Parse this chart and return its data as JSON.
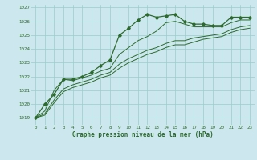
{
  "title": "Graphe pression niveau de la mer (hPa)",
  "xlabel_hours": [
    0,
    1,
    2,
    3,
    4,
    5,
    6,
    7,
    8,
    9,
    10,
    11,
    12,
    13,
    14,
    15,
    16,
    17,
    18,
    19,
    20,
    21,
    22,
    23
  ],
  "ylim": [
    1018.5,
    1027.2
  ],
  "yticks": [
    1019,
    1020,
    1021,
    1022,
    1023,
    1024,
    1025,
    1026,
    1027
  ],
  "bg_color": "#cce8ee",
  "grid_color": "#99cccc",
  "line_color": "#2d6a2d",
  "line1": [
    1019.0,
    1020.0,
    1020.7,
    1021.8,
    1021.8,
    1022.0,
    1022.3,
    1022.8,
    1023.2,
    1025.0,
    1025.5,
    1026.1,
    1026.5,
    1026.3,
    1026.4,
    1026.5,
    1026.0,
    1025.8,
    1025.8,
    1025.7,
    1025.7,
    1026.3,
    1026.3,
    1026.3
  ],
  "line2": [
    1019.0,
    1019.5,
    1021.0,
    1021.8,
    1021.7,
    1021.9,
    1022.1,
    1022.4,
    1022.6,
    1023.6,
    1024.1,
    1024.6,
    1024.9,
    1025.3,
    1025.9,
    1026.0,
    1025.8,
    1025.6,
    1025.6,
    1025.6,
    1025.6,
    1025.9,
    1026.1,
    1026.1
  ],
  "line3": [
    1019.0,
    1019.3,
    1020.3,
    1021.1,
    1021.4,
    1021.6,
    1021.8,
    1022.1,
    1022.3,
    1022.9,
    1023.3,
    1023.6,
    1023.9,
    1024.1,
    1024.4,
    1024.6,
    1024.6,
    1024.8,
    1024.9,
    1025.0,
    1025.1,
    1025.4,
    1025.6,
    1025.7
  ],
  "line4": [
    1019.0,
    1019.2,
    1020.1,
    1020.9,
    1021.2,
    1021.4,
    1021.6,
    1021.9,
    1022.1,
    1022.6,
    1023.0,
    1023.3,
    1023.6,
    1023.8,
    1024.1,
    1024.3,
    1024.3,
    1024.5,
    1024.7,
    1024.8,
    1024.9,
    1025.2,
    1025.4,
    1025.5
  ],
  "title_fontsize": 5.5,
  "tick_fontsize": 4.2
}
